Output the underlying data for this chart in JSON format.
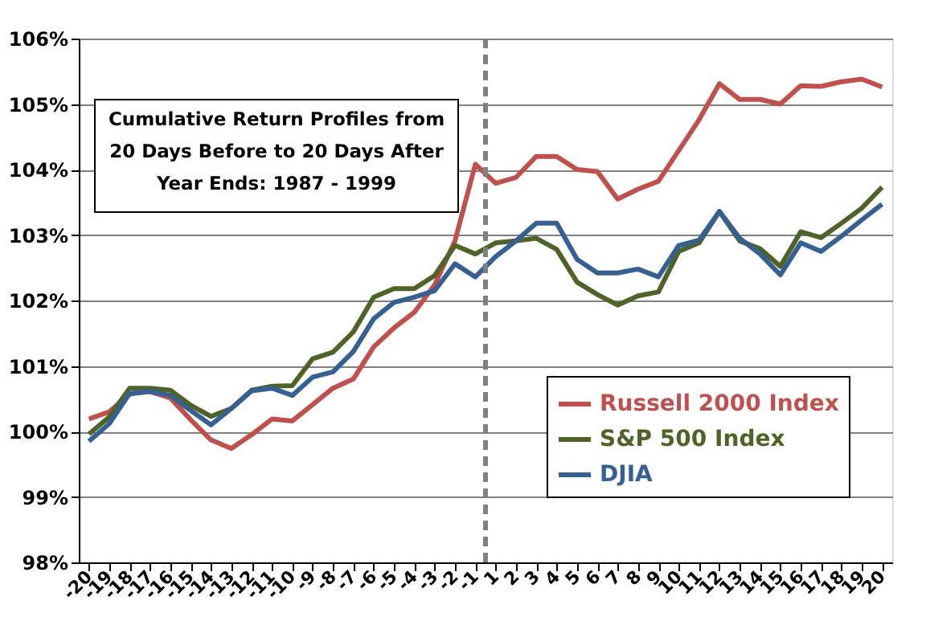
{
  "chart_data": {
    "type": "line",
    "title": "Cumulative Return Profiles from\n20 Days Before to 20 Days After\nYear Ends: 1987 - 1999",
    "categories": [
      "-20",
      "-19",
      "-18",
      "-17",
      "-16",
      "-15",
      "-14",
      "-13",
      "-12",
      "-11",
      "-10",
      "-9",
      "-8",
      "-7",
      "-6",
      "-5",
      "-4",
      "-3",
      "-2",
      "-1",
      "1",
      "2",
      "3",
      "4",
      "5",
      "6",
      "7",
      "8",
      "9",
      "10",
      "11",
      "12",
      "13",
      "14",
      "15",
      "16",
      "17",
      "18",
      "19",
      "20"
    ],
    "series": [
      {
        "name": "Russell 2000 Index",
        "color": "#c0504d",
        "values": [
          100.19,
          100.3,
          100.57,
          100.61,
          100.51,
          100.18,
          99.87,
          99.74,
          99.95,
          100.19,
          100.16,
          100.41,
          100.66,
          100.8,
          101.29,
          101.58,
          101.82,
          102.24,
          102.91,
          104.08,
          103.79,
          103.88,
          104.2,
          104.2,
          104.0,
          103.97,
          103.55,
          103.7,
          103.82,
          104.29,
          104.76,
          105.31,
          105.07,
          105.07,
          105.0,
          105.28,
          105.27,
          105.34,
          105.38,
          105.26
        ]
      },
      {
        "name": "S&P 500 Index",
        "color": "#4f6228",
        "values": [
          99.96,
          100.22,
          100.66,
          100.66,
          100.63,
          100.4,
          100.23,
          100.35,
          100.63,
          100.69,
          100.7,
          101.11,
          101.21,
          101.52,
          102.05,
          102.18,
          102.18,
          102.38,
          102.84,
          102.71,
          102.88,
          102.91,
          102.95,
          102.78,
          102.28,
          102.09,
          101.93,
          102.07,
          102.13,
          102.75,
          102.88,
          103.36,
          102.91,
          102.79,
          102.52,
          103.05,
          102.96,
          103.18,
          103.41,
          103.73
        ]
      },
      {
        "name": "DJIA",
        "color": "#376092",
        "values": [
          99.85,
          100.12,
          100.58,
          100.61,
          100.55,
          100.32,
          100.1,
          100.35,
          100.62,
          100.66,
          100.55,
          100.83,
          100.91,
          101.22,
          101.72,
          101.97,
          102.05,
          102.15,
          102.56,
          102.36,
          102.67,
          102.91,
          103.18,
          103.18,
          102.63,
          102.42,
          102.42,
          102.48,
          102.36,
          102.84,
          102.92,
          103.36,
          102.95,
          102.71,
          102.39,
          102.88,
          102.75,
          102.98,
          103.23,
          103.47
        ]
      }
    ],
    "ylim": [
      98,
      106
    ],
    "yticks": [
      {
        "value": 98,
        "label": "98%"
      },
      {
        "value": 99,
        "label": "99%"
      },
      {
        "value": 100,
        "label": "100%"
      },
      {
        "value": 101,
        "label": "101%"
      },
      {
        "value": 102,
        "label": "102%"
      },
      {
        "value": 103,
        "label": "103%"
      },
      {
        "value": 104,
        "label": "104%"
      },
      {
        "value": 105,
        "label": "105%"
      },
      {
        "value": 106,
        "label": "106%"
      }
    ],
    "ref_lines": [
      {
        "axis": "x",
        "value": "1",
        "color": "#808080",
        "line_style": "dashed"
      }
    ],
    "grid": "y",
    "legend": "right",
    "line_style": "solid",
    "marker": "none"
  }
}
